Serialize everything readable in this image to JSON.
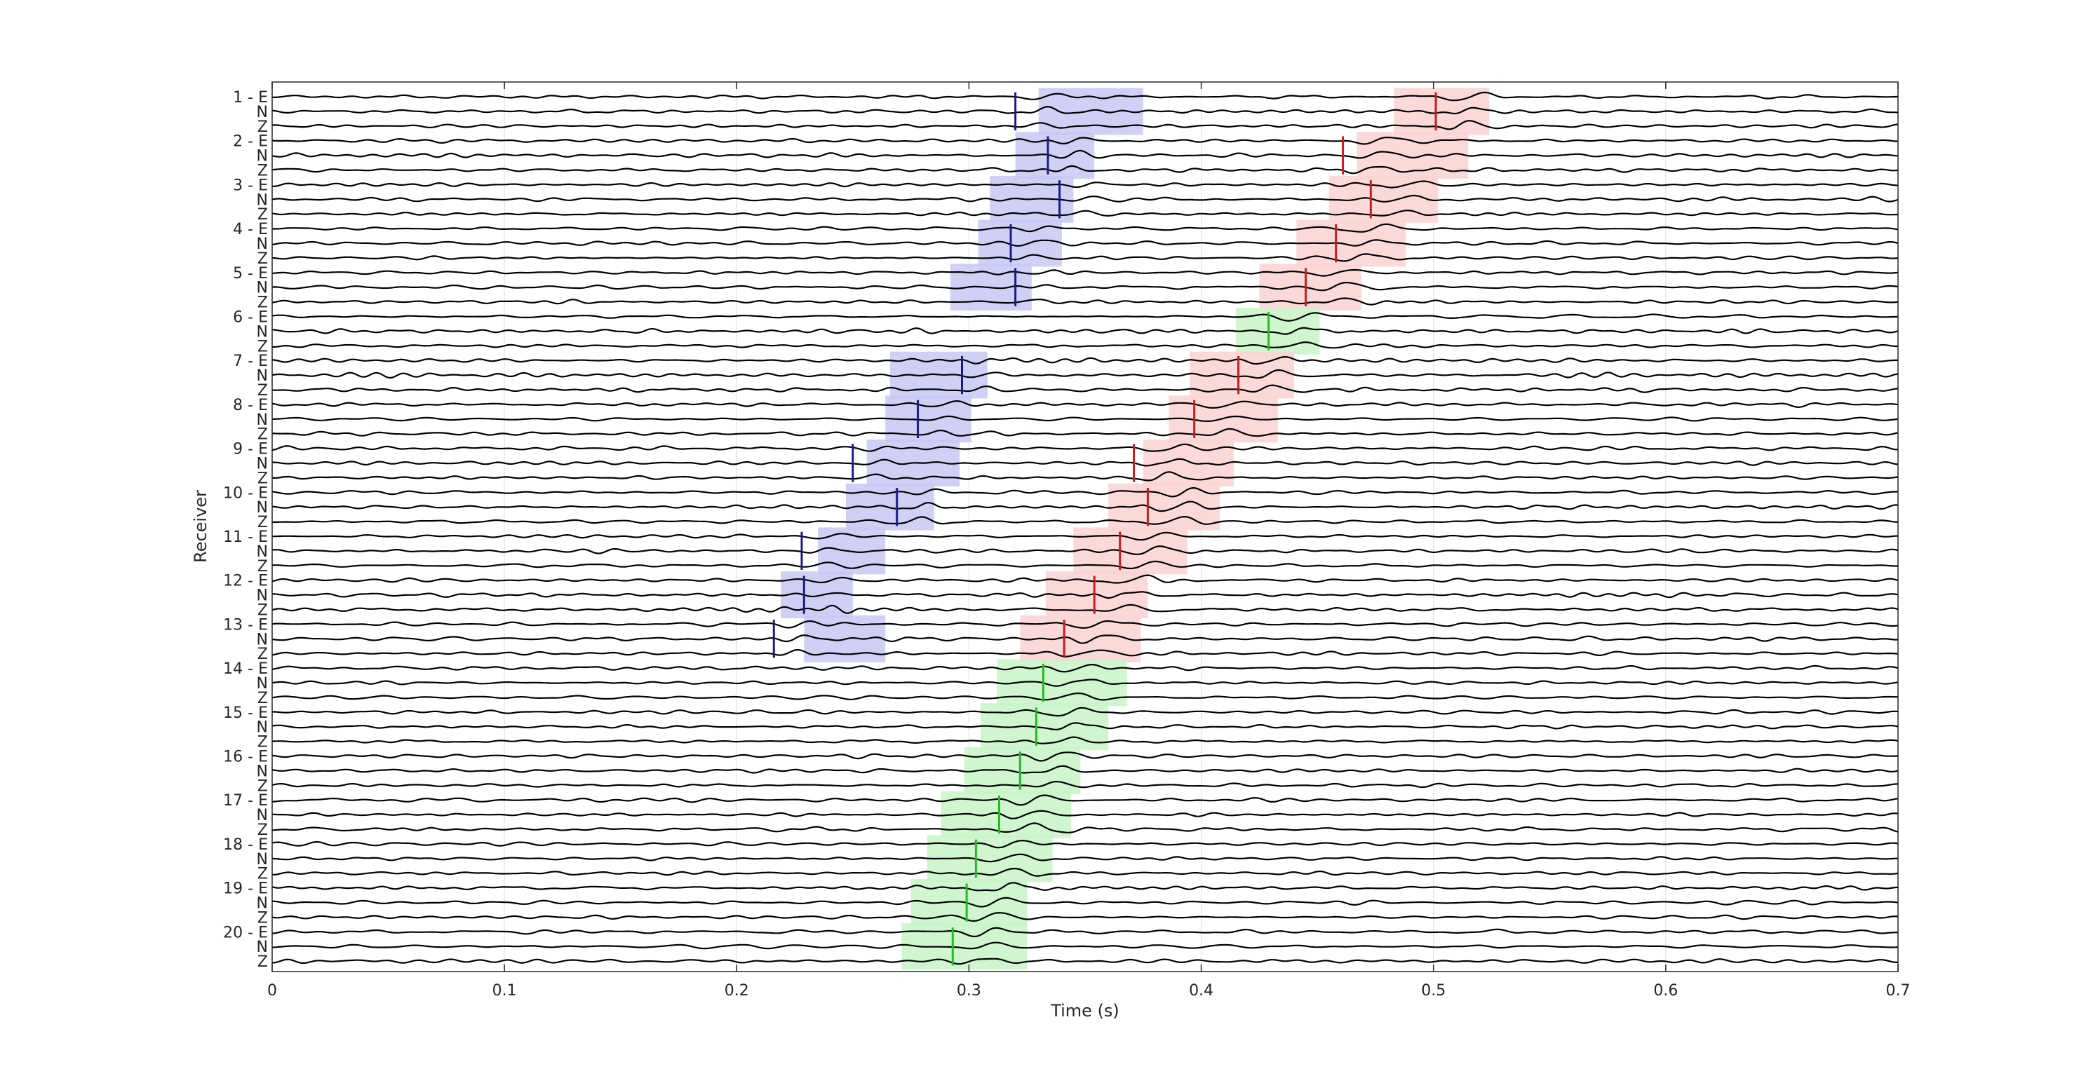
{
  "chart_data": {
    "type": "line",
    "title": "",
    "xlabel": "Time (s)",
    "ylabel": "Receiver",
    "xlim": [
      0,
      0.7
    ],
    "xticks": [
      0,
      0.1,
      0.2,
      0.3,
      0.4,
      0.5,
      0.6,
      0.7
    ],
    "xtick_labels": [
      "0",
      "0.1",
      "0.2",
      "0.3",
      "0.4",
      "0.5",
      "0.6",
      "0.7"
    ],
    "grid": true,
    "legend": "none",
    "components": [
      "E",
      "N",
      "Z"
    ],
    "receivers": [
      1,
      2,
      3,
      4,
      5,
      6,
      7,
      8,
      9,
      10,
      11,
      12,
      13,
      14,
      15,
      16,
      17,
      18,
      19,
      20
    ],
    "receiver_labels": [
      "1 - E",
      "2 - E",
      "3 - E",
      "4 - E",
      "5 - E",
      "6 - E",
      "7 - E",
      "8 - E",
      "9 - E",
      "10 - E",
      "11 - E",
      "12 - E",
      "13 - E",
      "14 - E",
      "15 - E",
      "16 - E",
      "17 - E",
      "18 - E",
      "19 - E",
      "20 - E"
    ],
    "component_labels": [
      "N",
      "Z"
    ],
    "colors": {
      "trace": "#000000",
      "p_pick": "#1a1a8c",
      "s_pick": "#c41e1e",
      "pick_green": "#22bb22",
      "p_window": "#c8c8f5",
      "s_window": "#fad2d2",
      "green_window": "#c8f5c8",
      "axes": "#262626",
      "grid": "#e0e0e0"
    },
    "picks": [
      {
        "receiver": 1,
        "p": 0.32,
        "s": 0.501,
        "p_color": "blue",
        "s_color": "red"
      },
      {
        "receiver": 2,
        "p": 0.334,
        "s": 0.461,
        "p_color": "blue",
        "s_color": "red"
      },
      {
        "receiver": 3,
        "p": 0.339,
        "s": 0.473,
        "p_color": "blue",
        "s_color": "red"
      },
      {
        "receiver": 4,
        "p": 0.318,
        "s": 0.458,
        "p_color": "blue",
        "s_color": "red"
      },
      {
        "receiver": 5,
        "p": 0.32,
        "s": 0.445,
        "p_color": "blue",
        "s_color": "red"
      },
      {
        "receiver": 6,
        "p": null,
        "s": 0.429,
        "p_color": "blue",
        "s_color": "green"
      },
      {
        "receiver": 7,
        "p": 0.297,
        "s": 0.416,
        "p_color": "blue",
        "s_color": "red"
      },
      {
        "receiver": 8,
        "p": 0.278,
        "s": 0.397,
        "p_color": "blue",
        "s_color": "red"
      },
      {
        "receiver": 9,
        "p": 0.25,
        "s": 0.371,
        "p_color": "blue",
        "s_color": "red"
      },
      {
        "receiver": 10,
        "p": 0.269,
        "s": 0.377,
        "p_color": "blue",
        "s_color": "red"
      },
      {
        "receiver": 11,
        "p": 0.228,
        "s": 0.365,
        "p_color": "blue",
        "s_color": "red"
      },
      {
        "receiver": 12,
        "p": 0.229,
        "s": 0.354,
        "p_color": "blue",
        "s_color": "red"
      },
      {
        "receiver": 13,
        "p": 0.216,
        "s": 0.341,
        "p_color": "blue",
        "s_color": "red"
      },
      {
        "receiver": 14,
        "p": null,
        "s": 0.332,
        "p_color": "blue",
        "s_color": "green"
      },
      {
        "receiver": 15,
        "p": null,
        "s": 0.329,
        "p_color": "blue",
        "s_color": "green"
      },
      {
        "receiver": 16,
        "p": null,
        "s": 0.322,
        "p_color": "blue",
        "s_color": "green"
      },
      {
        "receiver": 17,
        "p": null,
        "s": 0.313,
        "p_color": "blue",
        "s_color": "green"
      },
      {
        "receiver": 18,
        "p": null,
        "s": 0.303,
        "p_color": "blue",
        "s_color": "green"
      },
      {
        "receiver": 19,
        "p": null,
        "s": 0.299,
        "p_color": "blue",
        "s_color": "green"
      },
      {
        "receiver": 20,
        "p": null,
        "s": 0.293,
        "p_color": "blue",
        "s_color": "green"
      }
    ],
    "windows": [
      {
        "receiver": 1,
        "kind": "p",
        "t0": 0.33,
        "t1": 0.375
      },
      {
        "receiver": 1,
        "kind": "s",
        "t0": 0.483,
        "t1": 0.524
      },
      {
        "receiver": 2,
        "kind": "p",
        "t0": 0.32,
        "t1": 0.354
      },
      {
        "receiver": 2,
        "kind": "s",
        "t0": 0.467,
        "t1": 0.515
      },
      {
        "receiver": 3,
        "kind": "p",
        "t0": 0.309,
        "t1": 0.345
      },
      {
        "receiver": 3,
        "kind": "s",
        "t0": 0.455,
        "t1": 0.502
      },
      {
        "receiver": 4,
        "kind": "p",
        "t0": 0.304,
        "t1": 0.34
      },
      {
        "receiver": 4,
        "kind": "s",
        "t0": 0.441,
        "t1": 0.488
      },
      {
        "receiver": 5,
        "kind": "p",
        "t0": 0.292,
        "t1": 0.327
      },
      {
        "receiver": 5,
        "kind": "s",
        "t0": 0.425,
        "t1": 0.469
      },
      {
        "receiver": 6,
        "kind": "g",
        "t0": 0.415,
        "t1": 0.451
      },
      {
        "receiver": 7,
        "kind": "p",
        "t0": 0.266,
        "t1": 0.308
      },
      {
        "receiver": 7,
        "kind": "s",
        "t0": 0.395,
        "t1": 0.44
      },
      {
        "receiver": 8,
        "kind": "p",
        "t0": 0.264,
        "t1": 0.301
      },
      {
        "receiver": 8,
        "kind": "s",
        "t0": 0.386,
        "t1": 0.433
      },
      {
        "receiver": 9,
        "kind": "p",
        "t0": 0.256,
        "t1": 0.296
      },
      {
        "receiver": 9,
        "kind": "s",
        "t0": 0.375,
        "t1": 0.414
      },
      {
        "receiver": 10,
        "kind": "p",
        "t0": 0.247,
        "t1": 0.285
      },
      {
        "receiver": 10,
        "kind": "s",
        "t0": 0.36,
        "t1": 0.408
      },
      {
        "receiver": 11,
        "kind": "p",
        "t0": 0.235,
        "t1": 0.264
      },
      {
        "receiver": 11,
        "kind": "s",
        "t0": 0.345,
        "t1": 0.394
      },
      {
        "receiver": 12,
        "kind": "p",
        "t0": 0.219,
        "t1": 0.25
      },
      {
        "receiver": 12,
        "kind": "s",
        "t0": 0.333,
        "t1": 0.377
      },
      {
        "receiver": 13,
        "kind": "p",
        "t0": 0.229,
        "t1": 0.264
      },
      {
        "receiver": 13,
        "kind": "s",
        "t0": 0.322,
        "t1": 0.374
      },
      {
        "receiver": 14,
        "kind": "g",
        "t0": 0.312,
        "t1": 0.368
      },
      {
        "receiver": 15,
        "kind": "g",
        "t0": 0.305,
        "t1": 0.36
      },
      {
        "receiver": 16,
        "kind": "g",
        "t0": 0.298,
        "t1": 0.348
      },
      {
        "receiver": 17,
        "kind": "g",
        "t0": 0.288,
        "t1": 0.344
      },
      {
        "receiver": 18,
        "kind": "g",
        "t0": 0.282,
        "t1": 0.336
      },
      {
        "receiver": 19,
        "kind": "g",
        "t0": 0.275,
        "t1": 0.325
      },
      {
        "receiver": 20,
        "kind": "g",
        "t0": 0.271,
        "t1": 0.325
      }
    ]
  }
}
